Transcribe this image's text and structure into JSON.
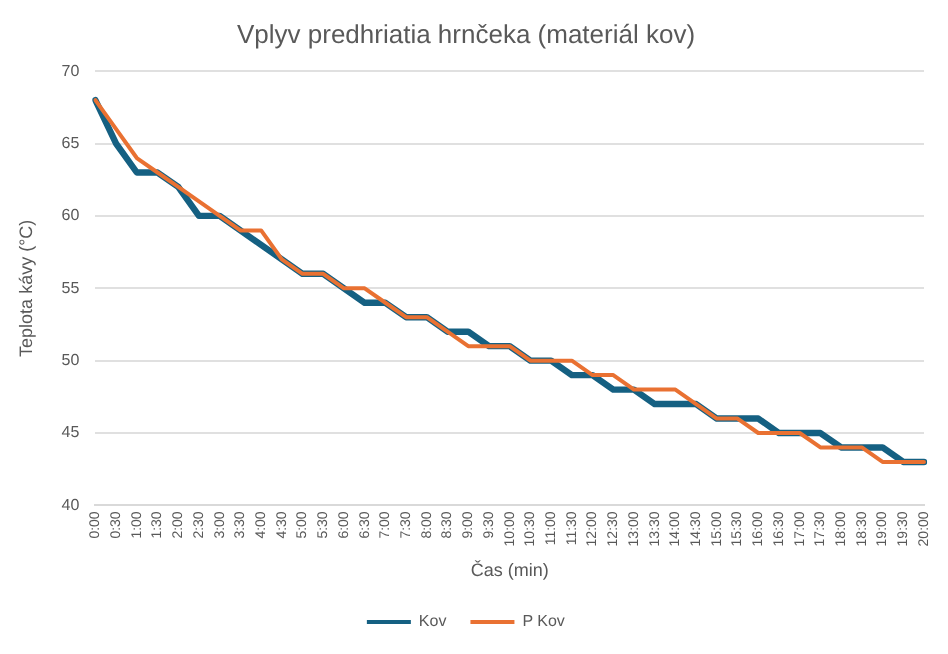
{
  "chart_data": {
    "type": "line",
    "title": "Vplyv predhriatia hrnčeka (materiál kov)",
    "xlabel": "Čas (min)",
    "ylabel": "Teplota kávy (°C)",
    "categories": [
      "0:00",
      "0:30",
      "1:00",
      "1:30",
      "2:00",
      "2:30",
      "3:00",
      "3:30",
      "4:00",
      "4:30",
      "5:00",
      "5:30",
      "6:00",
      "6:30",
      "7:00",
      "7:30",
      "8:00",
      "8:30",
      "9:00",
      "9:30",
      "10:00",
      "10:30",
      "11:00",
      "11:30",
      "12:00",
      "12:30",
      "13:00",
      "13:30",
      "14:00",
      "14:30",
      "15:00",
      "15:30",
      "16:00",
      "16:30",
      "17:00",
      "17:30",
      "18:00",
      "18:30",
      "19:00",
      "19:30",
      "20:00"
    ],
    "series": [
      {
        "name": "Kov",
        "color": "#156082",
        "values": [
          68,
          65,
          63,
          63,
          62,
          60,
          60,
          59,
          58,
          57,
          56,
          56,
          55,
          54,
          54,
          53,
          53,
          52,
          52,
          51,
          51,
          50,
          50,
          49,
          49,
          48,
          48,
          47,
          47,
          47,
          46,
          46,
          46,
          45,
          45,
          45,
          44,
          44,
          44,
          43,
          43
        ]
      },
      {
        "name": "P Kov",
        "color": "#e97132",
        "values": [
          68,
          66,
          64,
          63,
          62,
          61,
          60,
          59,
          59,
          57,
          56,
          56,
          55,
          55,
          54,
          53,
          53,
          52,
          51,
          51,
          51,
          50,
          50,
          50,
          49,
          49,
          48,
          48,
          48,
          47,
          46,
          46,
          45,
          45,
          45,
          44,
          44,
          44,
          43,
          43,
          43
        ]
      }
    ],
    "ylim": [
      40,
      70
    ],
    "yticks": [
      40,
      45,
      50,
      55,
      60,
      65,
      70
    ],
    "grid": "y",
    "legend": "bottom",
    "marker": "none",
    "line_style": "solid"
  }
}
